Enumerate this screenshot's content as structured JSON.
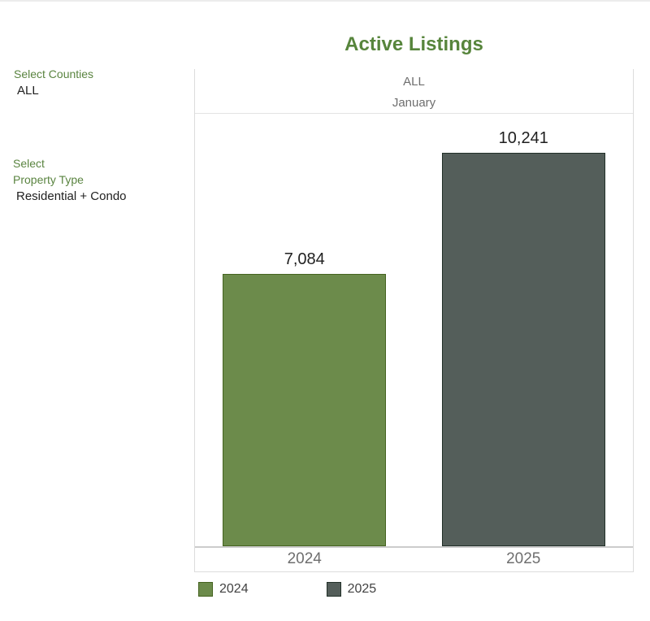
{
  "filters": {
    "counties": {
      "label": "Select Counties",
      "value": "ALL"
    },
    "property_type": {
      "label_lines": [
        "Select",
        "Property Type"
      ],
      "value": "Residential + Condo"
    }
  },
  "chart_data": {
    "type": "bar",
    "title": "Active Listings",
    "subtitle_lines": [
      "ALL",
      "January"
    ],
    "categories": [
      "2024",
      "2025"
    ],
    "values": [
      7084,
      10241
    ],
    "value_labels": [
      "7,084",
      "10,241"
    ],
    "series_colors": [
      "#6c8b4b",
      "#545e5a"
    ],
    "series_border_colors": [
      "#456320",
      "#223029"
    ],
    "legend": [
      {
        "label": "2024",
        "color": "#6c8b4b"
      },
      {
        "label": "2025",
        "color": "#545e5a"
      }
    ],
    "legend_position": "bottom",
    "grid": false,
    "xlabel": "",
    "ylabel": "",
    "ylim": [
      0,
      11250
    ]
  },
  "colors": {
    "title_green": "#57853c",
    "label_green": "#5a8440",
    "text_dark": "#212121",
    "text_gray": "#6e6e6e",
    "legend_text": "#424242",
    "card_border": "#dcdcdc",
    "baseline": "#cccccc"
  }
}
